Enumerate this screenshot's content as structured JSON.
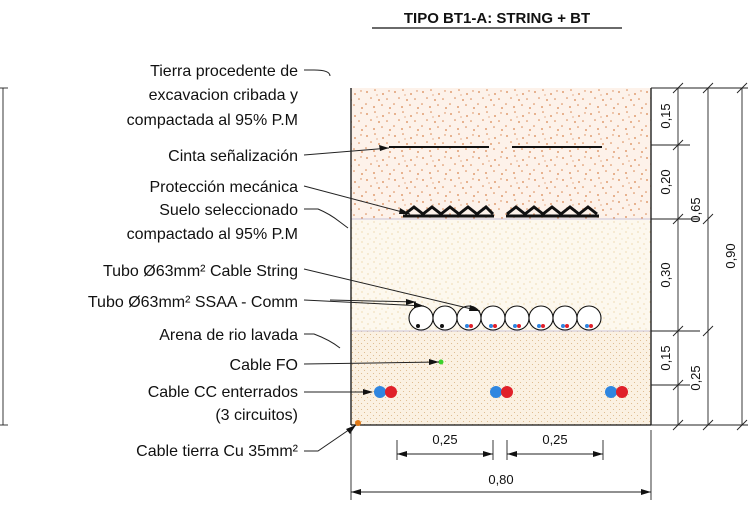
{
  "title": "TIPO BT1-A: STRING + BT",
  "labels": [
    "Tierra procedente de",
    "excavacion cribada y",
    "compactada al 95% P.M",
    "Cinta señalización",
    "Protección mecánica",
    "Suelo seleccionado",
    "compactado al 95% P.M",
    "Tubo Ø63mm² Cable String",
    "Tubo Ø63mm² SSAA - Comm",
    "Arena de rio lavada",
    "Cable FO",
    "Cable CC enterrados",
    "(3 circuitos)",
    "Cable tierra Cu 35mm²"
  ],
  "dimensions": {
    "d015_top": "0,15",
    "d020": "0,20",
    "d065": "0,65",
    "d090": "0,90",
    "d030": "0,30",
    "d015_bottom": "0,15",
    "d025_right": "0,25",
    "d025_left": "0,25",
    "d025_mid": "0,25",
    "d080": "0,80"
  },
  "colors": {
    "fill_top": "#d8844e",
    "fill_mid": "#ecd6a4",
    "fill_sand": "#e2c49a",
    "cable_blue": "#2f86e0",
    "cable_red": "#e0202a",
    "fiber_green": "#3ad12a",
    "earth_orange": "#e07a18"
  }
}
